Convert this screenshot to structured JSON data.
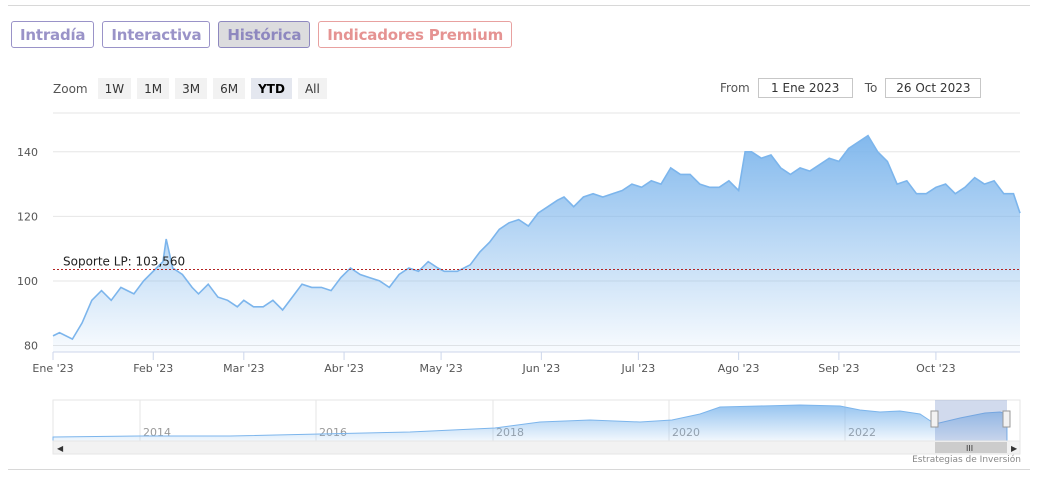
{
  "tabs": [
    {
      "label": "Intradía",
      "active": false,
      "premium": false
    },
    {
      "label": "Interactiva",
      "active": false,
      "premium": false
    },
    {
      "label": "Histórica",
      "active": true,
      "premium": false
    },
    {
      "label": "Indicadores Premium",
      "active": false,
      "premium": true
    }
  ],
  "zoom": {
    "label": "Zoom",
    "buttons": [
      "1W",
      "1M",
      "3M",
      "6M",
      "YTD",
      "All"
    ],
    "selected": "YTD"
  },
  "range": {
    "from_label": "From",
    "from_value": "1 Ene 2023",
    "to_label": "To",
    "to_value": "26 Oct 2023"
  },
  "credits": "Estrategias de Inversión",
  "colors": {
    "line": "#7cb5ec",
    "fill_top": "#7cb5ec",
    "support": "#b22222",
    "tab_accent": "#9a93c8",
    "premium_accent": "#e59392"
  },
  "chart_data": {
    "type": "area",
    "title": "",
    "xlabel": "",
    "ylabel": "",
    "grid": true,
    "ylim": [
      78,
      152
    ],
    "yticks": [
      80,
      100,
      120,
      140
    ],
    "xlim": [
      "2023-01-01",
      "2023-10-27"
    ],
    "xticks": [
      {
        "label": "Ene '23",
        "date": "2023-01-01"
      },
      {
        "label": "Feb '23",
        "date": "2023-02-01"
      },
      {
        "label": "Mar '23",
        "date": "2023-03-01"
      },
      {
        "label": "Abr '23",
        "date": "2023-04-01"
      },
      {
        "label": "May '23",
        "date": "2023-05-01"
      },
      {
        "label": "Jun '23",
        "date": "2023-06-01"
      },
      {
        "label": "Jul '23",
        "date": "2023-07-01"
      },
      {
        "label": "Ago '23",
        "date": "2023-08-01"
      },
      {
        "label": "Sep '23",
        "date": "2023-09-01"
      },
      {
        "label": "Oct '23",
        "date": "2023-10-01"
      }
    ],
    "support_line": {
      "label": "Soporte LP: 103,560",
      "value": 103.56
    },
    "series": [
      {
        "x": [
          "2023-01-01",
          "2023-01-03",
          "2023-01-07",
          "2023-01-10",
          "2023-01-13",
          "2023-01-16",
          "2023-01-19",
          "2023-01-22",
          "2023-01-26",
          "2023-01-29",
          "2023-02-02",
          "2023-02-04",
          "2023-02-05",
          "2023-02-07",
          "2023-02-10",
          "2023-02-13",
          "2023-02-15",
          "2023-02-18",
          "2023-02-21",
          "2023-02-24",
          "2023-02-27",
          "2023-03-01",
          "2023-03-04",
          "2023-03-07",
          "2023-03-10",
          "2023-03-13",
          "2023-03-16",
          "2023-03-19",
          "2023-03-22",
          "2023-03-25",
          "2023-03-28",
          "2023-03-31",
          "2023-04-03",
          "2023-04-06",
          "2023-04-09",
          "2023-04-12",
          "2023-04-15",
          "2023-04-18",
          "2023-04-21",
          "2023-04-24",
          "2023-04-27",
          "2023-04-30",
          "2023-05-02",
          "2023-05-06",
          "2023-05-10",
          "2023-05-13",
          "2023-05-16",
          "2023-05-19",
          "2023-05-22",
          "2023-05-25",
          "2023-05-28",
          "2023-05-31",
          "2023-06-03",
          "2023-06-06",
          "2023-06-08",
          "2023-06-11",
          "2023-06-14",
          "2023-06-17",
          "2023-06-20",
          "2023-06-23",
          "2023-06-26",
          "2023-06-29",
          "2023-07-02",
          "2023-07-05",
          "2023-07-08",
          "2023-07-11",
          "2023-07-14",
          "2023-07-17",
          "2023-07-20",
          "2023-07-23",
          "2023-07-26",
          "2023-07-29",
          "2023-08-01",
          "2023-08-03",
          "2023-08-05",
          "2023-08-08",
          "2023-08-11",
          "2023-08-14",
          "2023-08-17",
          "2023-08-20",
          "2023-08-23",
          "2023-08-26",
          "2023-08-29",
          "2023-09-01",
          "2023-09-04",
          "2023-09-07",
          "2023-09-10",
          "2023-09-13",
          "2023-09-16",
          "2023-09-19",
          "2023-09-22",
          "2023-09-25",
          "2023-09-28",
          "2023-10-01",
          "2023-10-04",
          "2023-10-07",
          "2023-10-10",
          "2023-10-13",
          "2023-10-16",
          "2023-10-19",
          "2023-10-22",
          "2023-10-25",
          "2023-10-27"
        ],
        "values": [
          83,
          84,
          82,
          87,
          94,
          97,
          94,
          98,
          96,
          100,
          104,
          106,
          113,
          104,
          102,
          98,
          96,
          99,
          95,
          94,
          92,
          94,
          92,
          92,
          94,
          91,
          95,
          99,
          98,
          98,
          97,
          101,
          104,
          102,
          101,
          100,
          98,
          102,
          104,
          103,
          106,
          104,
          103,
          103,
          105,
          109,
          112,
          116,
          118,
          119,
          117,
          121,
          123,
          125,
          126,
          123,
          126,
          127,
          126,
          127,
          128,
          130,
          129,
          131,
          130,
          135,
          133,
          133,
          130,
          129,
          129,
          131,
          128,
          140,
          140,
          138,
          139,
          135,
          133,
          135,
          134,
          136,
          138,
          137,
          141,
          143,
          145,
          140,
          137,
          130,
          131,
          127,
          127,
          129,
          130,
          127,
          129,
          132,
          130,
          131,
          127,
          127,
          121
        ]
      }
    ],
    "navigator": {
      "year_labels": [
        "2014",
        "2016",
        "2018",
        "2020",
        "2022"
      ]
    }
  }
}
